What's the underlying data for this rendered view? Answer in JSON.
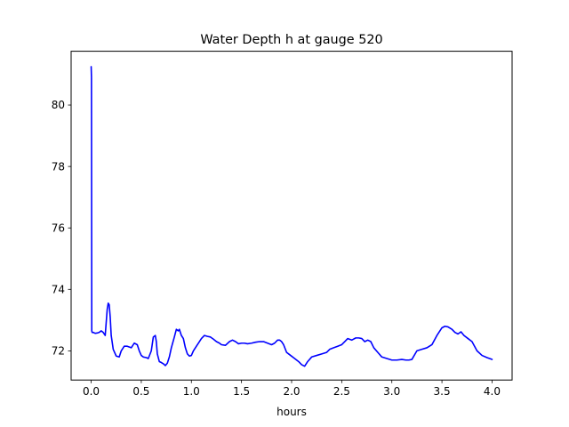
{
  "chart_data": {
    "type": "line",
    "title": "Water Depth h at gauge 520",
    "xlabel": "hours",
    "ylabel": "",
    "xlim": [
      -0.2,
      4.2
    ],
    "ylim": [
      71.05,
      81.75
    ],
    "x_ticks": [
      0.0,
      0.5,
      1.0,
      1.5,
      2.0,
      2.5,
      3.0,
      3.5,
      4.0
    ],
    "x_tick_labels": [
      "0.0",
      "0.5",
      "1.0",
      "1.5",
      "2.0",
      "2.5",
      "3.0",
      "3.5",
      "4.0"
    ],
    "y_ticks": [
      72,
      74,
      76,
      78,
      80
    ],
    "y_tick_labels": [
      "72",
      "74",
      "76",
      "78",
      "80"
    ],
    "grid": false,
    "line_color": "#0000ff",
    "series": [
      {
        "x": [
          0.0,
          0.003,
          0.006,
          0.01,
          0.02,
          0.04,
          0.06,
          0.08,
          0.1,
          0.12,
          0.14,
          0.16,
          0.17,
          0.18,
          0.19,
          0.2,
          0.22,
          0.25,
          0.28,
          0.3,
          0.33,
          0.36,
          0.4,
          0.43,
          0.46,
          0.48,
          0.5,
          0.52,
          0.55,
          0.57,
          0.6,
          0.62,
          0.64,
          0.65,
          0.66,
          0.68,
          0.7,
          0.72,
          0.74,
          0.76,
          0.78,
          0.8,
          0.83,
          0.85,
          0.87,
          0.88,
          0.9,
          0.92,
          0.94,
          0.96,
          0.98,
          1.0,
          1.02,
          1.05,
          1.08,
          1.1,
          1.13,
          1.16,
          1.19,
          1.22,
          1.25,
          1.28,
          1.3,
          1.34,
          1.38,
          1.41,
          1.44,
          1.47,
          1.5,
          1.53,
          1.56,
          1.6,
          1.64,
          1.68,
          1.72,
          1.76,
          1.8,
          1.83,
          1.86,
          1.88,
          1.9,
          1.92,
          1.95,
          1.99,
          2.03,
          2.07,
          2.1,
          2.13,
          2.16,
          2.2,
          2.25,
          2.3,
          2.35,
          2.38,
          2.42,
          2.46,
          2.5,
          2.53,
          2.56,
          2.6,
          2.64,
          2.67,
          2.7,
          2.73,
          2.76,
          2.79,
          2.82,
          2.86,
          2.9,
          2.95,
          3.0,
          3.05,
          3.1,
          3.14,
          3.17,
          3.2,
          3.25,
          3.3,
          3.35,
          3.4,
          3.45,
          3.5,
          3.53,
          3.56,
          3.6,
          3.63,
          3.66,
          3.69,
          3.72,
          3.76,
          3.8,
          3.85,
          3.9,
          3.95,
          4.0
        ],
        "y": [
          81.25,
          80.9,
          72.65,
          72.6,
          72.6,
          72.57,
          72.58,
          72.6,
          72.65,
          72.6,
          72.5,
          73.35,
          73.55,
          73.5,
          73.1,
          72.5,
          72.05,
          71.83,
          71.8,
          72.0,
          72.15,
          72.15,
          72.1,
          72.25,
          72.2,
          72.0,
          71.85,
          71.8,
          71.78,
          71.75,
          72.0,
          72.45,
          72.5,
          72.3,
          71.9,
          71.65,
          71.62,
          71.58,
          71.52,
          71.6,
          71.8,
          72.1,
          72.45,
          72.7,
          72.65,
          72.7,
          72.5,
          72.4,
          72.1,
          71.9,
          71.83,
          71.85,
          72.0,
          72.15,
          72.3,
          72.4,
          72.5,
          72.47,
          72.45,
          72.38,
          72.3,
          72.25,
          72.2,
          72.18,
          72.3,
          72.35,
          72.3,
          72.23,
          72.25,
          72.25,
          72.23,
          72.25,
          72.28,
          72.3,
          72.3,
          72.25,
          72.2,
          72.25,
          72.35,
          72.35,
          72.3,
          72.2,
          71.95,
          71.85,
          71.75,
          71.65,
          71.55,
          71.5,
          71.65,
          71.8,
          71.85,
          71.9,
          71.95,
          72.05,
          72.1,
          72.15,
          72.2,
          72.3,
          72.4,
          72.35,
          72.42,
          72.42,
          72.4,
          72.3,
          72.35,
          72.3,
          72.1,
          71.95,
          71.8,
          71.75,
          71.7,
          71.7,
          71.72,
          71.7,
          71.7,
          71.72,
          72.0,
          72.05,
          72.1,
          72.2,
          72.5,
          72.75,
          72.8,
          72.78,
          72.7,
          72.6,
          72.55,
          72.62,
          72.5,
          72.4,
          72.3,
          72.0,
          71.85,
          71.78,
          71.72
        ]
      }
    ]
  }
}
